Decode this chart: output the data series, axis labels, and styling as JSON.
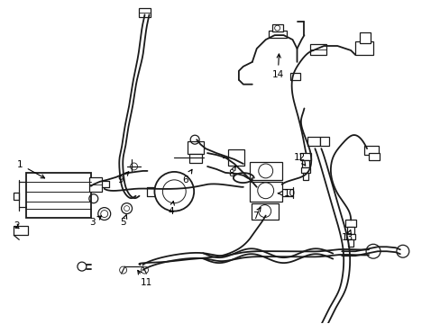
{
  "background_color": "#ffffff",
  "line_color": "#1a1a1a",
  "label_color": "#000000",
  "figsize": [
    4.89,
    3.6
  ],
  "dpi": 100,
  "arrow_color": "#000000",
  "lw_main": 1.3,
  "lw_thin": 0.9,
  "label_fontsize": 7.5
}
